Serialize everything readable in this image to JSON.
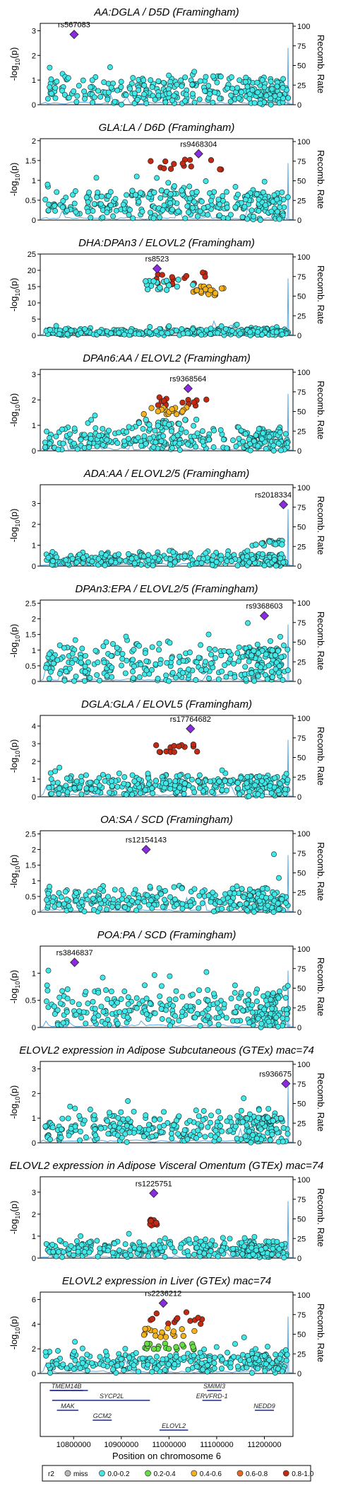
{
  "chart_data": [
    {
      "type": "scatter",
      "title": "AA:DGLA / D5D (Framingham)",
      "lead": "rs567083",
      "ylim": [
        0,
        3.3
      ],
      "yticks": [
        0,
        1,
        2,
        3
      ],
      "lead_x": 10801000,
      "lead_y": 2.85,
      "seed": 11,
      "cloud": [
        0.85,
        0.45
      ],
      "peak": [],
      "end_spike": [
        10910000,
        0.4
      ]
    },
    {
      "type": "scatter",
      "title": "GLA:LA / D6D (Framingham)",
      "lead": "rs9468304",
      "ylim": [
        0,
        2.05
      ],
      "yticks": [
        0,
        0.5,
        1,
        1.5,
        2
      ],
      "lead_x": 11062000,
      "lead_y": 1.67,
      "seed": 23,
      "cloud": [
        0.55,
        0.35
      ],
      "peak": [
        [
          10960000,
          11130000,
          1.55,
          "r2_08"
        ],
        [
          10920000,
          11060000,
          0.75,
          "r2_02"
        ]
      ],
      "end_spike": []
    },
    {
      "type": "scatter",
      "title": "DHA:DPAn3 / ELOVL2 (Framingham)",
      "lead": "rs8523",
      "ylim": [
        0,
        25
      ],
      "yticks": [
        0,
        5,
        10,
        15,
        20,
        25
      ],
      "lead_x": 10975000,
      "lead_y": 20.5,
      "seed": 37,
      "cloud": [
        1.5,
        1.0
      ],
      "peak": [
        [
          10960000,
          11080000,
          19,
          "r2_08"
        ],
        [
          11050000,
          11120000,
          15,
          "r2_06"
        ],
        [
          10950000,
          11060000,
          17,
          "r2_02"
        ]
      ],
      "end_spike": []
    },
    {
      "type": "scatter",
      "title": "DPAn6:AA / ELOVL2 (Framingham)",
      "lead": "rs9368564",
      "ylim": [
        0,
        3.2
      ],
      "yticks": [
        0,
        1,
        2,
        3
      ],
      "lead_x": 11040000,
      "lead_y": 2.45,
      "seed": 41,
      "cloud": [
        0.6,
        0.4
      ],
      "peak": [
        [
          10960000,
          11080000,
          2.15,
          "r2_08"
        ],
        [
          10940000,
          11040000,
          1.7,
          "r2_06"
        ],
        [
          10930000,
          11060000,
          1.2,
          "r2_02"
        ]
      ],
      "end_spike": []
    },
    {
      "type": "scatter",
      "title": "ADA:AA / ELOVL2/5 (Framingham)",
      "lead": "rs2018334",
      "ylim": [
        0,
        3.9
      ],
      "yticks": [
        0,
        1,
        2,
        3
      ],
      "lead_x": 11240000,
      "lead_y": 2.95,
      "seed": 53,
      "cloud": [
        0.45,
        0.3
      ],
      "peak": [
        [
          11180000,
          11240000,
          1.2,
          "r2_02"
        ]
      ],
      "end_spike": []
    },
    {
      "type": "scatter",
      "title": "DPAn3:EPA / ELOVL2/5 (Framingham)",
      "lead": "rs9368603",
      "ylim": [
        0,
        2.6
      ],
      "yticks": [
        0,
        0.5,
        1,
        1.5,
        2,
        2.5
      ],
      "lead_x": 11200000,
      "lead_y": 2.1,
      "seed": 67,
      "cloud": [
        0.85,
        0.5
      ],
      "peak": [
        [
          11160000,
          11230000,
          1.0,
          "r2_02"
        ]
      ],
      "end_spike": []
    },
    {
      "type": "scatter",
      "title": "DGLA:GLA / ELOVL5 (Framingham)",
      "lead": "rs17764682",
      "ylim": [
        0,
        4.6
      ],
      "yticks": [
        0,
        1,
        2,
        3,
        4
      ],
      "lead_x": 11045000,
      "lead_y": 3.85,
      "seed": 79,
      "cloud": [
        0.9,
        0.5
      ],
      "peak": [
        [
          10920000,
          11200000,
          0.9,
          "r2_02"
        ],
        [
          10970000,
          11060000,
          2.95,
          "r2_08"
        ]
      ],
      "end_spike": []
    },
    {
      "type": "scatter",
      "title": "OA:SA / SCD (Framingham)",
      "lead": "rs12154143",
      "ylim": [
        0,
        2.6
      ],
      "yticks": [
        0,
        0.5,
        1,
        1.5,
        2,
        2.5
      ],
      "lead_x": 10952000,
      "lead_y": 2.0,
      "seed": 83,
      "cloud": [
        0.55,
        0.35
      ],
      "peak": [],
      "end_spike": [
        11220000,
        1.85
      ]
    },
    {
      "type": "scatter",
      "title": "POA:PA / SCD (Framingham)",
      "lead": "rs3846837",
      "ylim": [
        0,
        1.5
      ],
      "yticks": [
        0,
        0.5,
        1
      ],
      "lead_x": 10802000,
      "lead_y": 1.2,
      "seed": 97,
      "cloud": [
        0.5,
        0.3
      ],
      "peak": [],
      "end_spike": []
    },
    {
      "type": "scatter",
      "title": "ELOVL2 expression in Adipose Subcutaneous (GTEx) mac=74",
      "lead": "rs936675",
      "ylim": [
        0,
        3.3
      ],
      "yticks": [
        0,
        1,
        2,
        3
      ],
      "lead_x": 11245000,
      "lead_y": 2.4,
      "seed": 101,
      "cloud": [
        0.9,
        0.55
      ],
      "peak": [
        [
          11150000,
          11240000,
          1.0,
          "r2_02"
        ]
      ],
      "end_spike": []
    },
    {
      "type": "scatter",
      "title": "ELOVL2 expression in Adipose Visceral Omentum (GTEx) mac=74",
      "lead": "rs1225751",
      "ylim": [
        0,
        3.7
      ],
      "yticks": [
        0,
        1,
        2,
        3
      ],
      "lead_x": 10968000,
      "lead_y": 2.95,
      "seed": 113,
      "cloud": [
        0.6,
        0.35
      ],
      "peak": [
        [
          10960000,
          10975000,
          1.8,
          "r2_08"
        ]
      ],
      "end_spike": []
    },
    {
      "type": "scatter",
      "title": "ELOVL2 expression in Liver (GTEx) mac=74",
      "lead": "rs2236212",
      "ylim": [
        0,
        6.6
      ],
      "yticks": [
        0,
        2,
        4,
        6
      ],
      "lead_x": 10988000,
      "lead_y": 5.7,
      "seed": 127,
      "cloud": [
        1.3,
        0.8
      ],
      "peak": [
        [
          10950000,
          11080000,
          4.9,
          "r2_08"
        ],
        [
          10940000,
          11070000,
          3.6,
          "r2_06"
        ],
        [
          10940000,
          11060000,
          2.4,
          "r2_04"
        ]
      ],
      "end_spike": []
    }
  ],
  "axes": {
    "ylabel": "-log",
    "ylabel_sub": "10",
    "ylabel_tail": "(p)",
    "y2label": "Recomb. Rate",
    "y2ticks": [
      "0",
      "25",
      "50",
      "75",
      "100"
    ],
    "xlabel": "Position on chromosome 6",
    "xticks": [
      "10800000",
      "10900000",
      "11000000",
      "11100000",
      "11200000"
    ],
    "xrange": [
      10730000,
      11260000
    ]
  },
  "genes": [
    {
      "name": "TMEM14B",
      "start": 10750000,
      "end": 10820000,
      "row": 0
    },
    {
      "name": "SYCP2L",
      "start": 10850000,
      "end": 10910000,
      "row": 1
    },
    {
      "name": "MAK",
      "start": 10765000,
      "end": 10810000,
      "row": 2
    },
    {
      "name": "GCM2",
      "start": 10840000,
      "end": 10880000,
      "row": 3
    },
    {
      "name": "SMIMI3",
      "start": 11080000,
      "end": 11110000,
      "row": 0
    },
    {
      "name": "ERVFRD-1",
      "start": 11070000,
      "end": 11110000,
      "row": 1
    },
    {
      "name": "NEDD9",
      "start": 11180000,
      "end": 11220000,
      "row": 2
    },
    {
      "name": "ELOVL2",
      "start": 10980000,
      "end": 11040000,
      "row": 4
    }
  ],
  "gene_line_y": {
    "row1_end": 10960000
  },
  "legend": {
    "title": "r2",
    "items": [
      {
        "label": "miss",
        "color": "#b8b8b8"
      },
      {
        "label": "0.0-0.2",
        "color": "#40e8e8"
      },
      {
        "label": "0.2-0.4",
        "color": "#66dd44"
      },
      {
        "label": "0.4-0.6",
        "color": "#f5b21b"
      },
      {
        "label": "0.6-0.8",
        "color": "#e86a1c"
      },
      {
        "label": "0.8-1.0",
        "color": "#c42a12"
      }
    ]
  },
  "colors": {
    "r2_02": "#40e8e8",
    "r2_04": "#66dd44",
    "r2_06": "#f5b21b",
    "r2_08": "#c42a12",
    "lead": "#8a2be2",
    "recomb": "#5aa9e6",
    "gene": "#1a2a8a"
  }
}
